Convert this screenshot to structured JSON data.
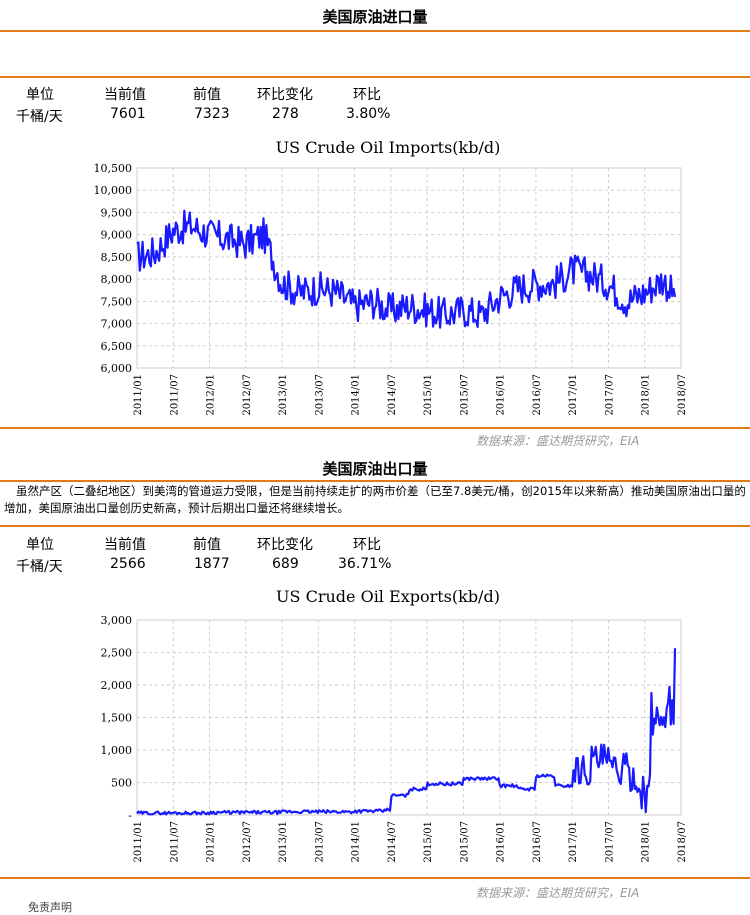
{
  "imports": {
    "title": "美国原油进口量",
    "table": {
      "headers": [
        "单位",
        "当前值",
        "前值",
        "环比变化",
        "环比"
      ],
      "values": [
        "千桶/天",
        "7601",
        "7323",
        "278",
        "3.80%"
      ]
    },
    "source": "数据来源：盛达期货研究，EIA"
  },
  "exports": {
    "title": "美国原油出口量",
    "note": "虽然产区（二叠纪地区）到美湾的管道运力受限，但是当前持续走扩的两市价差（已至7.8美元/桶，创2015年以来新高）推动美国原油出口量的增加，美国原油出口量创历史新高，预计后期出口量还将继续增长。",
    "table": {
      "headers": [
        "单位",
        "当前值",
        "前值",
        "环比变化",
        "环比"
      ],
      "values": [
        "千桶/天",
        "2566",
        "1877",
        "689",
        "36.71%"
      ]
    },
    "source": "数据来源：盛达期货研究，EIA"
  },
  "footer_text": "免责声明",
  "chart_data": [
    {
      "type": "line",
      "title": "US Crude Oil Imports(kb/d)",
      "series_color": "#1a1aff",
      "grid": true,
      "xlim": [
        "2011-01",
        "2018-07"
      ],
      "ylim": [
        6000,
        10500
      ],
      "x_ticks": [
        "2011/01",
        "2011/07",
        "2012/01",
        "2012/07",
        "2013/01",
        "2013/07",
        "2014/01",
        "2014/07",
        "2015/01",
        "2015/07",
        "2016/01",
        "2016/07",
        "2017/01",
        "2017/07",
        "2018/01",
        "2018/07"
      ],
      "y_ticks": [
        "6,000",
        "6,500",
        "7,000",
        "7,500",
        "8,000",
        "8,500",
        "9,000",
        "9,500",
        "10,000",
        "10,500"
      ],
      "y_tick_values": [
        6000,
        6500,
        7000,
        7500,
        8000,
        8500,
        9000,
        9500,
        10000,
        10500
      ],
      "x": [
        "2011-01",
        "2011-04",
        "2011-07",
        "2011-10",
        "2012-01",
        "2012-04",
        "2012-07",
        "2012-10",
        "2013-01",
        "2013-04",
        "2013-07",
        "2013-10",
        "2014-01",
        "2014-04",
        "2014-07",
        "2014-10",
        "2015-01",
        "2015-04",
        "2015-07",
        "2015-10",
        "2016-01",
        "2016-04",
        "2016-07",
        "2016-10",
        "2017-01",
        "2017-04",
        "2017-07",
        "2017-10",
        "2018-01",
        "2018-04",
        "2018-06"
      ],
      "values": [
        8500,
        8600,
        9100,
        9200,
        9000,
        8900,
        8800,
        9000,
        7900,
        7700,
        7800,
        7700,
        7400,
        7500,
        7300,
        7400,
        7300,
        7200,
        7300,
        7200,
        7600,
        7800,
        7900,
        7900,
        8200,
        8100,
        7900,
        7500,
        7700,
        8000,
        7600
      ]
    },
    {
      "type": "line",
      "title": "US Crude Oil Exports(kb/d)",
      "series_color": "#1a1aff",
      "grid": true,
      "xlim": [
        "2011-01",
        "2018-07"
      ],
      "ylim": [
        0,
        3000
      ],
      "x_ticks": [
        "2011/01",
        "2011/07",
        "2012/01",
        "2012/07",
        "2013/01",
        "2013/07",
        "2014/01",
        "2014/07",
        "2015/01",
        "2015/07",
        "2016/01",
        "2016/07",
        "2017/01",
        "2017/07",
        "2018/01",
        "2018/07"
      ],
      "y_ticks": [
        "-",
        "500",
        "1,000",
        "1,500",
        "2,000",
        "2,500",
        "3,000"
      ],
      "y_tick_values": [
        0,
        500,
        1000,
        1500,
        2000,
        2500,
        3000
      ],
      "x": [
        "2011-01",
        "2012-01",
        "2013-01",
        "2014-01",
        "2014-06",
        "2014-07",
        "2014-10",
        "2015-01",
        "2015-07",
        "2016-01",
        "2016-04",
        "2016-07",
        "2016-10",
        "2017-01",
        "2017-04",
        "2017-07",
        "2017-10",
        "2017-12",
        "2018-02",
        "2018-04",
        "2018-06"
      ],
      "values": [
        30,
        40,
        50,
        60,
        80,
        300,
        400,
        480,
        560,
        450,
        400,
        600,
        450,
        700,
        850,
        700,
        600,
        350,
        1500,
        1700,
        2566
      ]
    }
  ]
}
